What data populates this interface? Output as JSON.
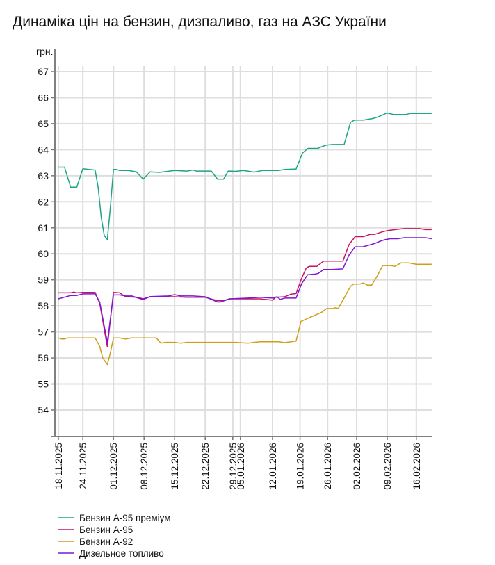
{
  "chart_data": {
    "type": "line",
    "title": "Динаміка цін на бензин, дизпаливо, газ на АЗС України",
    "ylabel": "грн.",
    "xlabel": "",
    "ylim": [
      53,
      67
    ],
    "yticks": [
      54,
      55,
      56,
      57,
      58,
      59,
      60,
      61,
      62,
      63,
      64,
      65,
      66,
      67
    ],
    "xlim": [
      -1.2,
      122.5
    ],
    "x_unit": "observation index",
    "xticks": [
      {
        "x": 0,
        "label": "18.11.2025"
      },
      {
        "x": 8,
        "label": "24.11.2025"
      },
      {
        "x": 18,
        "label": "01.12.2025"
      },
      {
        "x": 28,
        "label": "08.12.2025"
      },
      {
        "x": 38,
        "label": "15.12.2025"
      },
      {
        "x": 48,
        "label": "22.12.2025"
      },
      {
        "x": 57,
        "label": "29.12.2025"
      },
      {
        "x": 59.5,
        "label": "05.01.2026"
      },
      {
        "x": 70,
        "label": "12.01.2026"
      },
      {
        "x": 79,
        "label": "19.01.2026"
      },
      {
        "x": 88,
        "label": "26.01.2026"
      },
      {
        "x": 97.5,
        "label": "02.02.2026"
      },
      {
        "x": 107.5,
        "label": "09.02.2026"
      },
      {
        "x": 117,
        "label": "16.02.2026"
      }
    ],
    "grid": true,
    "legend_position": "bottom-left",
    "series": [
      {
        "name": "Бензин А-95 преміум",
        "color": "#1aa585",
        "points": [
          [
            0,
            63.33
          ],
          [
            2,
            63.33
          ],
          [
            4,
            62.56
          ],
          [
            6,
            62.56
          ],
          [
            8,
            63.27
          ],
          [
            10,
            63.24
          ],
          [
            12,
            63.22
          ],
          [
            13,
            62.55
          ],
          [
            14,
            61.4
          ],
          [
            15,
            60.7
          ],
          [
            16,
            60.55
          ],
          [
            17,
            61.8
          ],
          [
            18,
            63.24
          ],
          [
            19,
            63.24
          ],
          [
            20,
            63.2
          ],
          [
            23,
            63.2
          ],
          [
            25.5,
            63.15
          ],
          [
            27.7,
            62.87
          ],
          [
            30,
            63.15
          ],
          [
            33,
            63.13
          ],
          [
            38,
            63.2
          ],
          [
            42,
            63.18
          ],
          [
            44,
            63.22
          ],
          [
            45,
            63.18
          ],
          [
            50,
            63.18
          ],
          [
            52,
            62.87
          ],
          [
            54,
            62.87
          ],
          [
            55.5,
            63.18
          ],
          [
            58,
            63.17
          ],
          [
            60.5,
            63.2
          ],
          [
            64,
            63.14
          ],
          [
            66.7,
            63.2
          ],
          [
            72,
            63.2
          ],
          [
            74,
            63.24
          ],
          [
            77.7,
            63.26
          ],
          [
            79.8,
            63.87
          ],
          [
            81.6,
            64.05
          ],
          [
            84.7,
            64.05
          ],
          [
            87.3,
            64.17
          ],
          [
            89.5,
            64.2
          ],
          [
            93.4,
            64.2
          ],
          [
            95.5,
            65.05
          ],
          [
            96.8,
            65.14
          ],
          [
            99.8,
            65.14
          ],
          [
            102.9,
            65.2
          ],
          [
            104.5,
            65.26
          ],
          [
            107.4,
            65.41
          ],
          [
            109.7,
            65.35
          ],
          [
            113.5,
            65.35
          ],
          [
            115,
            65.39
          ],
          [
            122,
            65.39
          ]
        ]
      },
      {
        "name": "Бензин А-95",
        "color": "#c8135f",
        "points": [
          [
            0,
            58.5
          ],
          [
            4,
            58.5
          ],
          [
            5,
            58.53
          ],
          [
            6,
            58.5
          ],
          [
            8,
            58.52
          ],
          [
            12,
            58.52
          ],
          [
            13.5,
            58.1
          ],
          [
            16,
            56.42
          ],
          [
            18,
            58.52
          ],
          [
            20,
            58.5
          ],
          [
            22,
            58.35
          ],
          [
            26,
            58.33
          ],
          [
            27.7,
            58.27
          ],
          [
            30,
            58.35
          ],
          [
            38,
            58.35
          ],
          [
            42,
            58.33
          ],
          [
            48,
            58.33
          ],
          [
            52,
            58.2
          ],
          [
            54,
            58.2
          ],
          [
            56,
            58.27
          ],
          [
            66,
            58.27
          ],
          [
            70,
            58.22
          ],
          [
            71,
            58.33
          ],
          [
            74,
            58.35
          ],
          [
            76,
            58.45
          ],
          [
            77.7,
            58.47
          ],
          [
            79.3,
            59.0
          ],
          [
            81,
            59.45
          ],
          [
            82,
            59.52
          ],
          [
            84.5,
            59.52
          ],
          [
            86.7,
            59.72
          ],
          [
            93,
            59.72
          ],
          [
            95,
            60.35
          ],
          [
            97,
            60.66
          ],
          [
            99.7,
            60.66
          ],
          [
            102,
            60.75
          ],
          [
            103.5,
            60.75
          ],
          [
            106,
            60.85
          ],
          [
            108,
            60.9
          ],
          [
            113,
            60.97
          ],
          [
            118,
            60.97
          ],
          [
            120,
            60.93
          ],
          [
            122,
            60.93
          ]
        ]
      },
      {
        "name": "Бензин А-92",
        "color": "#cf9d16",
        "points": [
          [
            0,
            56.77
          ],
          [
            1,
            56.73
          ],
          [
            2,
            56.73
          ],
          [
            3,
            56.77
          ],
          [
            12,
            56.77
          ],
          [
            13.5,
            56.45
          ],
          [
            14.5,
            56.0
          ],
          [
            16,
            55.75
          ],
          [
            17,
            56.2
          ],
          [
            18,
            56.77
          ],
          [
            20,
            56.77
          ],
          [
            22,
            56.73
          ],
          [
            24,
            56.77
          ],
          [
            32,
            56.77
          ],
          [
            33.5,
            56.57
          ],
          [
            35,
            56.6
          ],
          [
            38,
            56.6
          ],
          [
            40,
            56.57
          ],
          [
            42,
            56.6
          ],
          [
            58,
            56.6
          ],
          [
            62,
            56.57
          ],
          [
            64,
            56.6
          ],
          [
            66,
            56.62
          ],
          [
            72,
            56.62
          ],
          [
            74,
            56.59
          ],
          [
            76,
            56.62
          ],
          [
            77.7,
            56.65
          ],
          [
            79.3,
            57.4
          ],
          [
            82,
            57.55
          ],
          [
            84,
            57.65
          ],
          [
            86,
            57.75
          ],
          [
            87.7,
            57.9
          ],
          [
            90,
            57.9
          ],
          [
            90.5,
            57.93
          ],
          [
            91.5,
            57.9
          ],
          [
            95.5,
            58.75
          ],
          [
            96.5,
            58.84
          ],
          [
            98.5,
            58.84
          ],
          [
            99.7,
            58.88
          ],
          [
            101,
            58.8
          ],
          [
            102.4,
            58.8
          ],
          [
            104,
            59.1
          ],
          [
            106,
            59.55
          ],
          [
            108.7,
            59.55
          ],
          [
            110,
            59.52
          ],
          [
            112,
            59.65
          ],
          [
            114.5,
            59.65
          ],
          [
            117,
            59.6
          ],
          [
            122,
            59.6
          ]
        ]
      },
      {
        "name": "Дизельное топливо",
        "color": "#7a18d6",
        "points": [
          [
            0,
            58.27
          ],
          [
            4,
            58.4
          ],
          [
            6,
            58.4
          ],
          [
            8,
            58.46
          ],
          [
            12,
            58.46
          ],
          [
            13.5,
            58.15
          ],
          [
            16,
            56.6
          ],
          [
            18,
            58.42
          ],
          [
            20,
            58.42
          ],
          [
            22,
            58.38
          ],
          [
            24,
            58.38
          ],
          [
            27.7,
            58.24
          ],
          [
            30,
            58.36
          ],
          [
            36,
            58.38
          ],
          [
            38,
            58.43
          ],
          [
            40,
            58.38
          ],
          [
            44,
            58.38
          ],
          [
            48,
            58.35
          ],
          [
            52,
            58.15
          ],
          [
            53,
            58.15
          ],
          [
            56,
            58.27
          ],
          [
            62,
            58.3
          ],
          [
            66,
            58.33
          ],
          [
            70,
            58.3
          ],
          [
            71.5,
            58.35
          ],
          [
            72.5,
            58.25
          ],
          [
            74,
            58.3
          ],
          [
            77.7,
            58.3
          ],
          [
            79.5,
            58.85
          ],
          [
            81.5,
            59.2
          ],
          [
            84,
            59.22
          ],
          [
            85,
            59.25
          ],
          [
            86.7,
            59.4
          ],
          [
            89.5,
            59.4
          ],
          [
            93,
            59.42
          ],
          [
            95,
            59.95
          ],
          [
            97,
            60.27
          ],
          [
            99.5,
            60.27
          ],
          [
            102,
            60.35
          ],
          [
            103.5,
            60.4
          ],
          [
            105.5,
            60.5
          ],
          [
            107,
            60.55
          ],
          [
            108.5,
            60.58
          ],
          [
            111,
            60.58
          ],
          [
            113,
            60.62
          ],
          [
            120,
            60.62
          ],
          [
            122,
            60.58
          ]
        ]
      }
    ]
  }
}
